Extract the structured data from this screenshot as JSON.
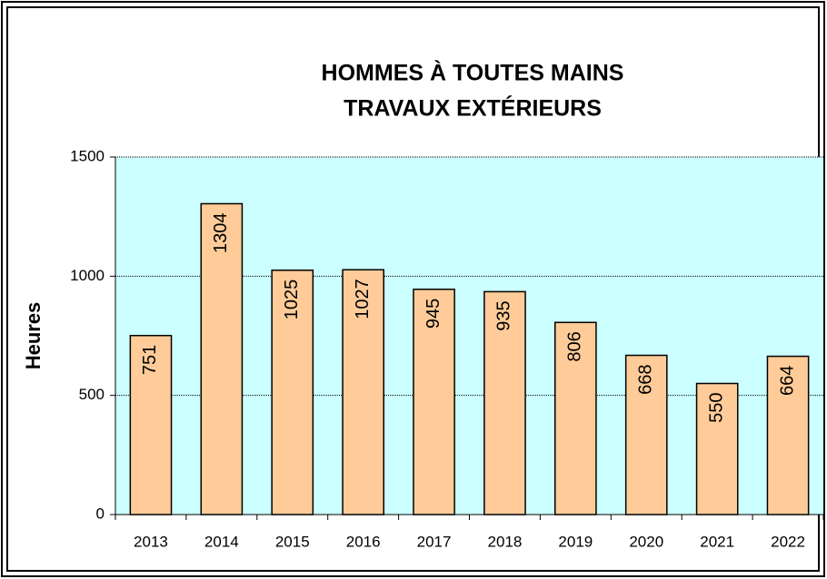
{
  "chart_data": {
    "type": "bar",
    "title": [
      "HOMMES À TOUTES MAINS",
      "TRAVAUX EXTÉRIEURS"
    ],
    "ylabel": "Heures",
    "categories": [
      "2013",
      "2014",
      "2015",
      "2016",
      "2017",
      "2018",
      "2019",
      "2020",
      "2021",
      "2022"
    ],
    "values": [
      751,
      1304,
      1025,
      1027,
      945,
      935,
      806,
      668,
      550,
      664
    ],
    "color": "#ffcc99",
    "ylim": [
      0,
      1500
    ],
    "yticks": [
      0,
      500,
      1000,
      1500
    ],
    "grid": true
  }
}
